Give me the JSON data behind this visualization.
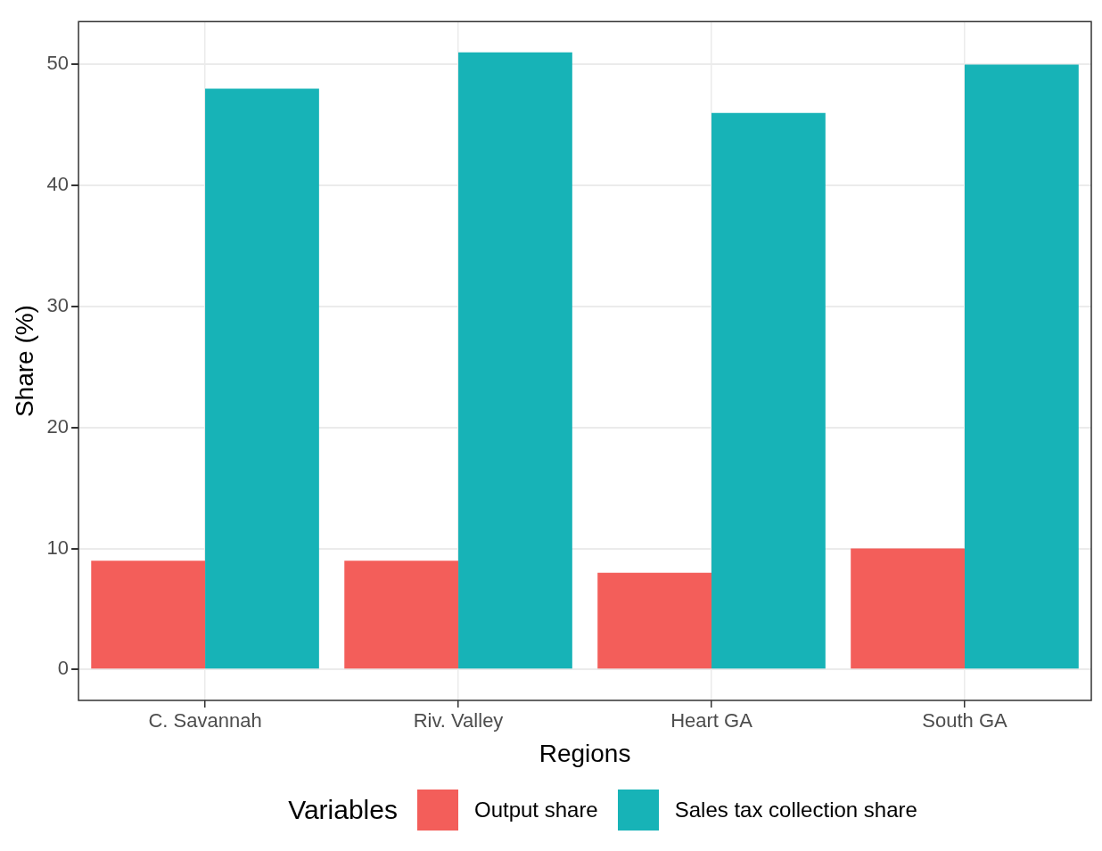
{
  "chart_data": {
    "type": "bar",
    "xlabel": "Regions",
    "ylabel": "Share (%)",
    "legend_title": "Variables",
    "categories": [
      "C. Savannah",
      "Riv. Valley",
      "Heart GA",
      "South GA"
    ],
    "series": [
      {
        "name": "Output share",
        "color": "#f35e5a",
        "values": [
          9,
          9,
          8,
          10
        ]
      },
      {
        "name": "Sales tax collection share",
        "color": "#17b3b7",
        "values": [
          48,
          51,
          46,
          50
        ]
      }
    ],
    "ylim": [
      -2.55,
      53.55
    ],
    "yticks": [
      0,
      10,
      20,
      30,
      40,
      50
    ],
    "grid": true,
    "legend": "bottom"
  }
}
